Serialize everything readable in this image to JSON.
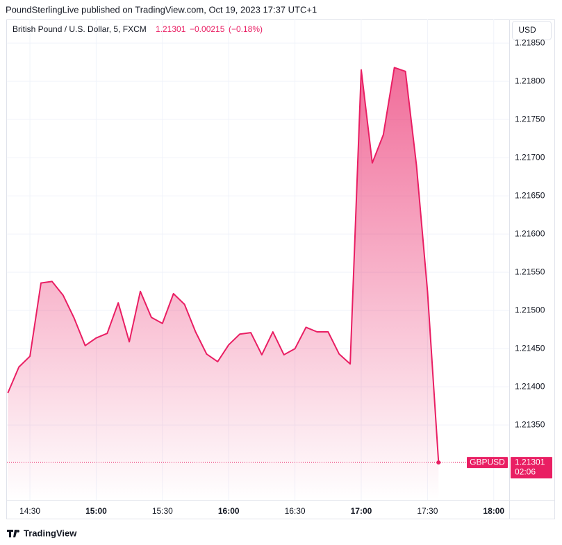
{
  "publisher": "PoundSterlingLive published on TradingView.com, Oct 19, 2023 17:37 UTC+1",
  "brand": "TradingView",
  "chart_data": {
    "type": "area",
    "title": "British Pound / U.S. Dollar, 5, FXCM",
    "last": "1.21301",
    "change": "−0.00215",
    "change_percent": "(−0.18%)",
    "currency": "USD",
    "price_tag": {
      "name": "GBPUSD",
      "price": "1.21301",
      "countdown": "02:06"
    },
    "color": "#e91e63",
    "grid": true,
    "x": [
      860,
      865,
      870,
      875,
      880,
      885,
      890,
      895,
      900,
      905,
      910,
      915,
      920,
      925,
      930,
      935,
      940,
      945,
      950,
      955,
      960,
      965,
      970,
      975,
      980,
      985,
      990,
      995,
      1000,
      1005,
      1010,
      1015,
      1020,
      1025,
      1030,
      1035,
      1040,
      1045,
      1050,
      1055
    ],
    "values": [
      1.21392,
      1.21426,
      1.2144,
      1.21536,
      1.21538,
      1.2152,
      1.2149,
      1.21454,
      1.21464,
      1.2147,
      1.2151,
      1.21459,
      1.21525,
      1.21491,
      1.21483,
      1.21522,
      1.21508,
      1.21472,
      1.21443,
      1.21433,
      1.21455,
      1.21469,
      1.21471,
      1.21442,
      1.21472,
      1.21442,
      1.2145,
      1.21478,
      1.21472,
      1.21472,
      1.21443,
      1.2143,
      1.21815,
      1.21693,
      1.2173,
      1.21818,
      1.21813,
      1.2169,
      1.21525,
      1.21301
    ],
    "xlim": [
      859.6,
      1087
    ],
    "xticks": [
      {
        "value": 870,
        "label": "14:30"
      },
      {
        "value": 900,
        "label": "15:00"
      },
      {
        "value": 930,
        "label": "15:30"
      },
      {
        "value": 960,
        "label": "16:00"
      },
      {
        "value": 990,
        "label": "16:30"
      },
      {
        "value": 1020,
        "label": "17:00"
      },
      {
        "value": 1050,
        "label": "17:30"
      },
      {
        "value": 1080,
        "label": "18:00"
      }
    ],
    "ylim": [
      1.21252,
      1.21881
    ],
    "yticks": [
      {
        "value": 1.2135,
        "label": "1.21350"
      },
      {
        "value": 1.214,
        "label": "1.21400"
      },
      {
        "value": 1.2145,
        "label": "1.21450"
      },
      {
        "value": 1.215,
        "label": "1.21500"
      },
      {
        "value": 1.2155,
        "label": "1.21550"
      },
      {
        "value": 1.216,
        "label": "1.21600"
      },
      {
        "value": 1.2165,
        "label": "1.21650"
      },
      {
        "value": 1.217,
        "label": "1.21700"
      },
      {
        "value": 1.2175,
        "label": "1.21750"
      },
      {
        "value": 1.218,
        "label": "1.21800"
      },
      {
        "value": 1.2185,
        "label": "1.21850"
      }
    ]
  }
}
